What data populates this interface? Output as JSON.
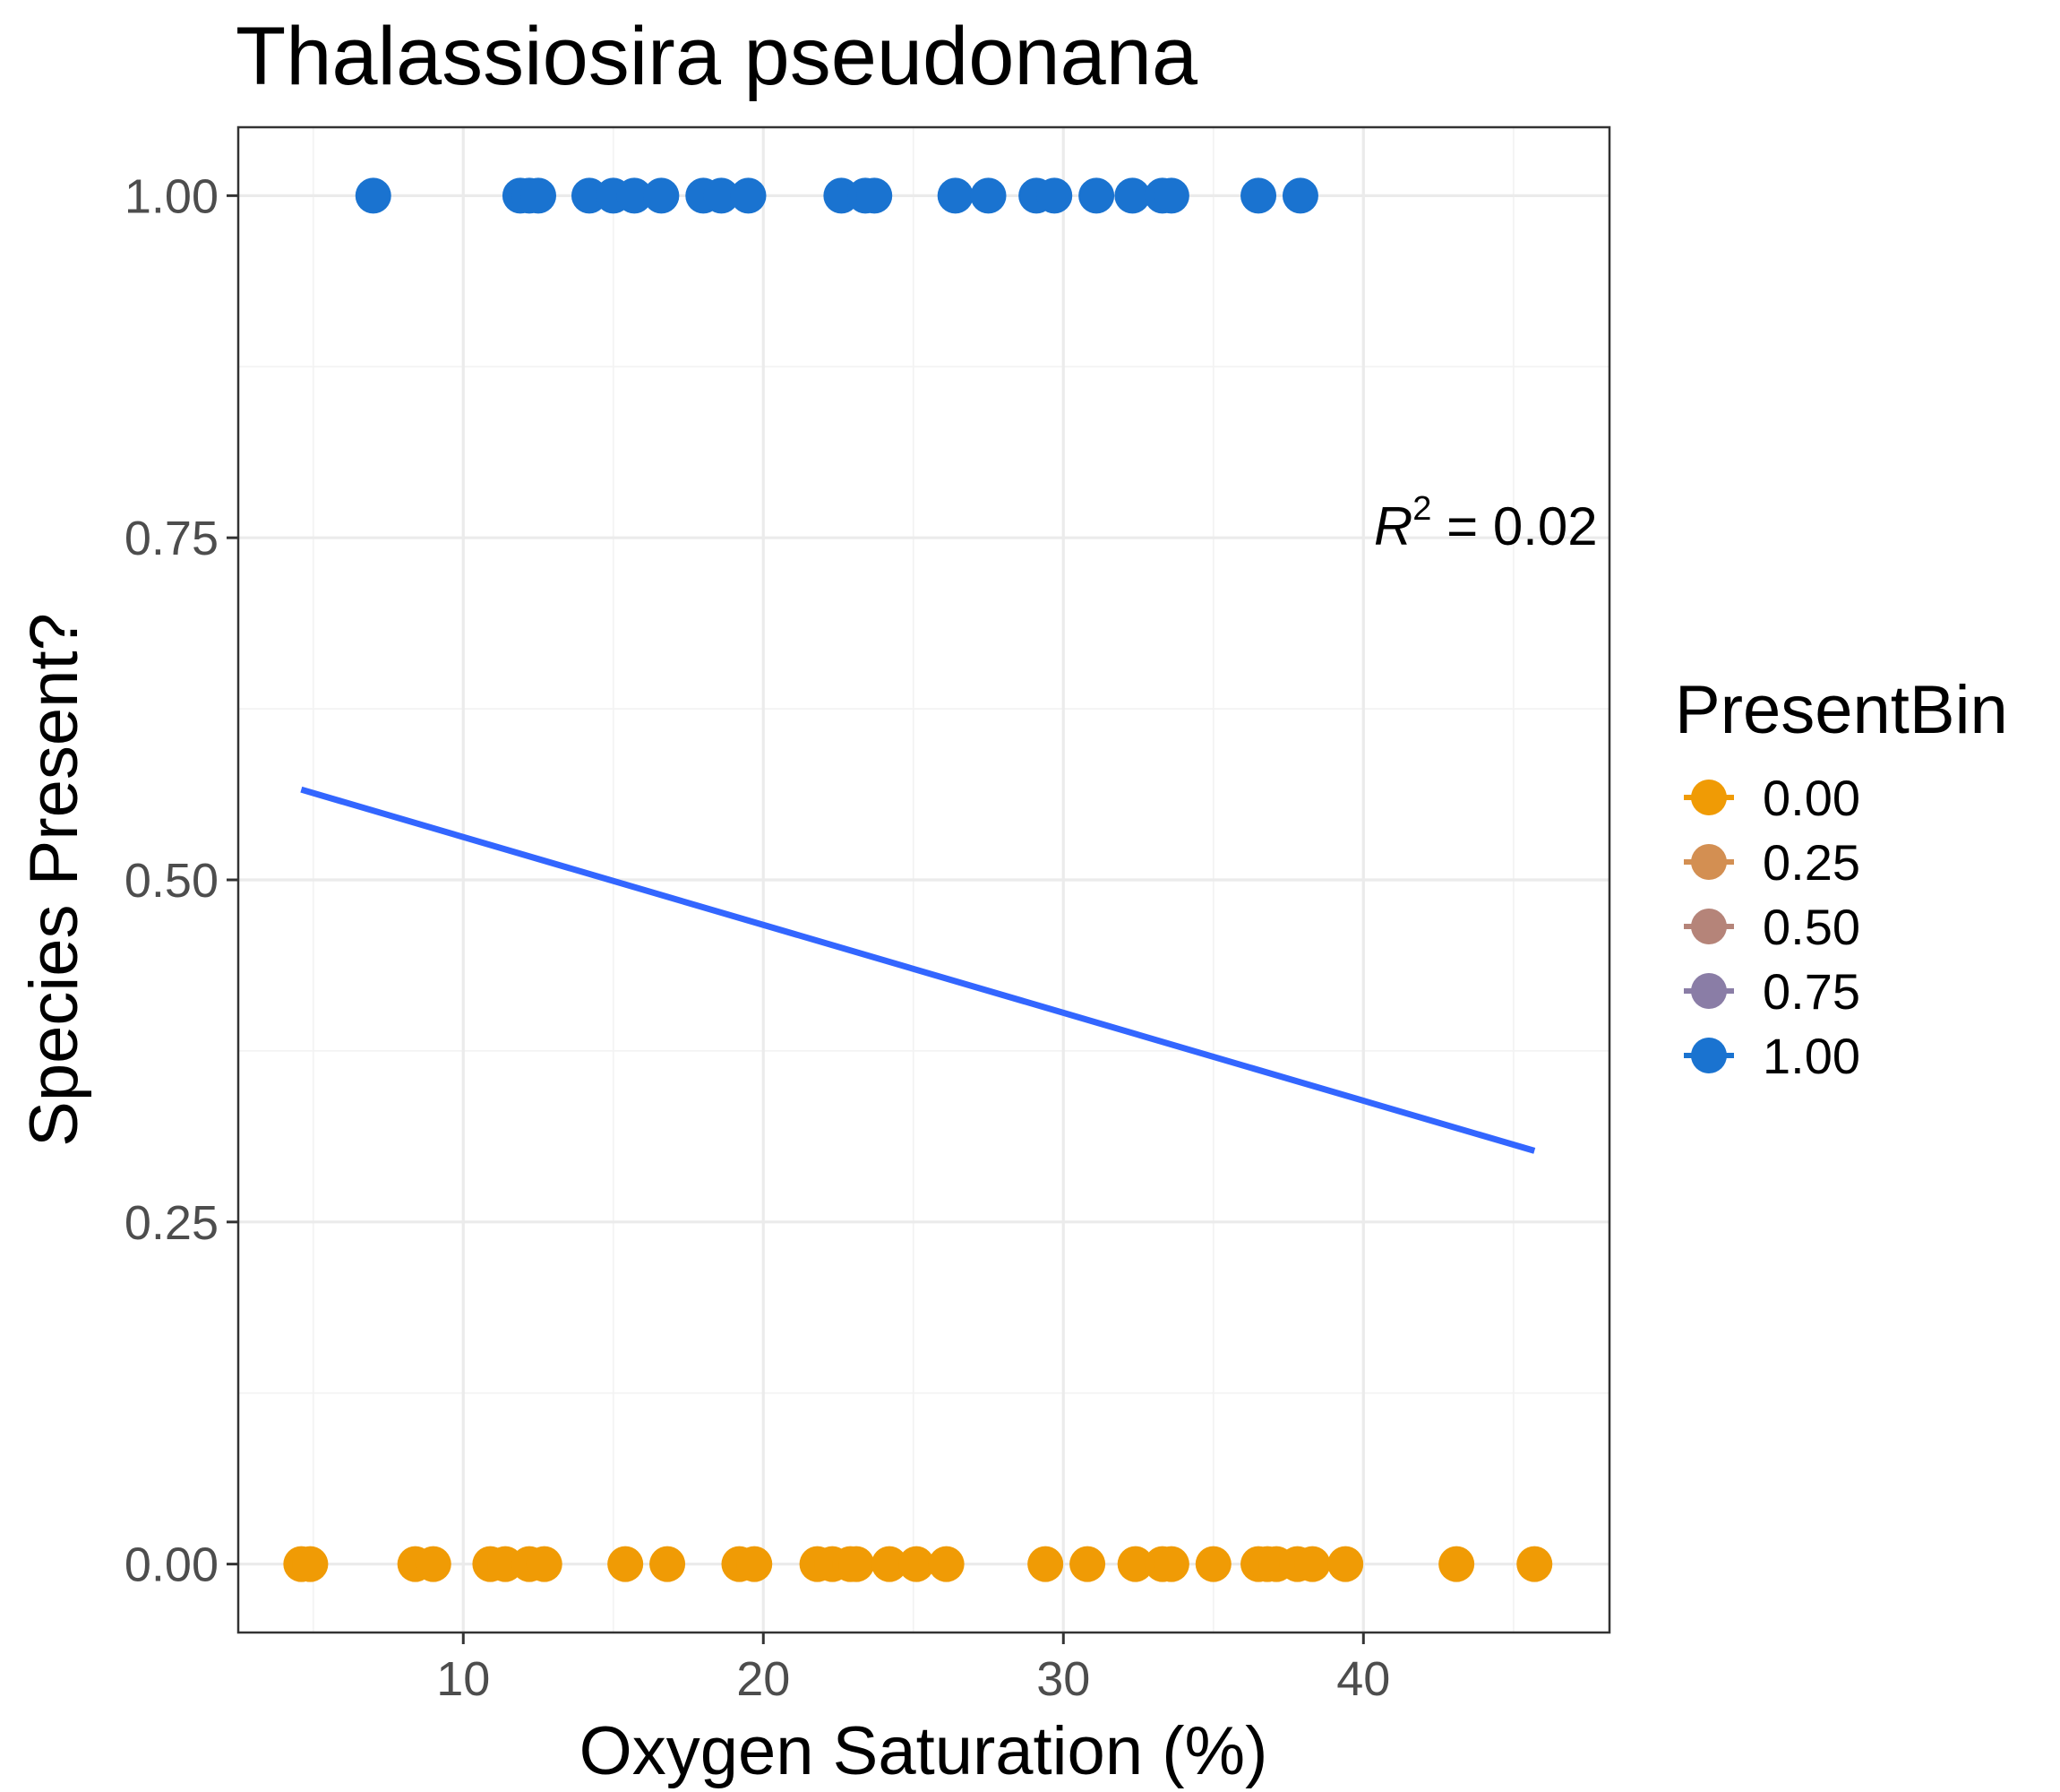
{
  "chart_data": {
    "type": "scatter",
    "title": "Thalassiosira pseudonana",
    "xlabel": "Oxygen Saturation (%)",
    "ylabel": "Species Present?",
    "xlim": [
      2.5,
      48.2
    ],
    "ylim": [
      -0.05,
      1.05
    ],
    "x_ticks": [
      10,
      20,
      30,
      40
    ],
    "y_ticks": [
      0.0,
      0.25,
      0.5,
      0.75,
      1.0
    ],
    "x_tick_labels": [
      "10",
      "20",
      "30",
      "40"
    ],
    "y_tick_labels": [
      "0.00",
      "0.25",
      "0.50",
      "0.75",
      "1.00"
    ],
    "grid": true,
    "legend": {
      "title": "PresentBin",
      "position": "right",
      "entries": [
        {
          "label": "0.00",
          "color": "#F09B05"
        },
        {
          "label": "0.25",
          "color": "#D38F52"
        },
        {
          "label": "0.50",
          "color": "#B58479"
        },
        {
          "label": "0.75",
          "color": "#8A7DA6"
        },
        {
          "label": "1.00",
          "color": "#1A73D0"
        }
      ]
    },
    "annotation": {
      "r2_symbol": "R",
      "r2_sup": "2",
      "r2_text": " = 0.02",
      "x": 47.8,
      "y": 0.745
    },
    "series": [
      {
        "present_bin": 1.0,
        "color": "#1A73D0",
        "points": [
          {
            "x": 7.0,
            "y": 1
          },
          {
            "x": 11.9,
            "y": 1
          },
          {
            "x": 12.2,
            "y": 1
          },
          {
            "x": 12.5,
            "y": 1
          },
          {
            "x": 14.2,
            "y": 1
          },
          {
            "x": 15.0,
            "y": 1
          },
          {
            "x": 15.7,
            "y": 1
          },
          {
            "x": 16.6,
            "y": 1
          },
          {
            "x": 18.0,
            "y": 1
          },
          {
            "x": 18.6,
            "y": 1
          },
          {
            "x": 19.5,
            "y": 1
          },
          {
            "x": 22.6,
            "y": 1
          },
          {
            "x": 23.4,
            "y": 1
          },
          {
            "x": 23.7,
            "y": 1
          },
          {
            "x": 26.4,
            "y": 1
          },
          {
            "x": 27.5,
            "y": 1
          },
          {
            "x": 29.1,
            "y": 1
          },
          {
            "x": 29.7,
            "y": 1
          },
          {
            "x": 31.1,
            "y": 1
          },
          {
            "x": 32.3,
            "y": 1
          },
          {
            "x": 33.3,
            "y": 1
          },
          {
            "x": 33.6,
            "y": 1
          },
          {
            "x": 36.5,
            "y": 1
          },
          {
            "x": 37.9,
            "y": 1
          }
        ]
      },
      {
        "present_bin": 0.0,
        "color": "#F09B05",
        "points": [
          {
            "x": 4.6,
            "y": 0
          },
          {
            "x": 4.9,
            "y": 0
          },
          {
            "x": 8.4,
            "y": 0
          },
          {
            "x": 9.0,
            "y": 0
          },
          {
            "x": 10.9,
            "y": 0
          },
          {
            "x": 11.4,
            "y": 0
          },
          {
            "x": 12.2,
            "y": 0
          },
          {
            "x": 12.7,
            "y": 0
          },
          {
            "x": 15.4,
            "y": 0
          },
          {
            "x": 16.8,
            "y": 0
          },
          {
            "x": 19.2,
            "y": 0
          },
          {
            "x": 19.7,
            "y": 0
          },
          {
            "x": 21.8,
            "y": 0
          },
          {
            "x": 22.3,
            "y": 0
          },
          {
            "x": 22.9,
            "y": 0
          },
          {
            "x": 23.1,
            "y": 0
          },
          {
            "x": 24.2,
            "y": 0
          },
          {
            "x": 25.1,
            "y": 0
          },
          {
            "x": 26.1,
            "y": 0
          },
          {
            "x": 29.4,
            "y": 0
          },
          {
            "x": 30.8,
            "y": 0
          },
          {
            "x": 32.4,
            "y": 0
          },
          {
            "x": 33.3,
            "y": 0
          },
          {
            "x": 33.6,
            "y": 0
          },
          {
            "x": 35.0,
            "y": 0
          },
          {
            "x": 36.5,
            "y": 0
          },
          {
            "x": 36.8,
            "y": 0
          },
          {
            "x": 37.1,
            "y": 0
          },
          {
            "x": 37.8,
            "y": 0
          },
          {
            "x": 38.3,
            "y": 0
          },
          {
            "x": 39.4,
            "y": 0
          },
          {
            "x": 43.1,
            "y": 0
          },
          {
            "x": 45.7,
            "y": 0
          }
        ]
      }
    ],
    "fit_line": {
      "color": "#3366FF",
      "x": [
        4.6,
        45.7
      ],
      "y": [
        0.566,
        0.302
      ]
    }
  }
}
